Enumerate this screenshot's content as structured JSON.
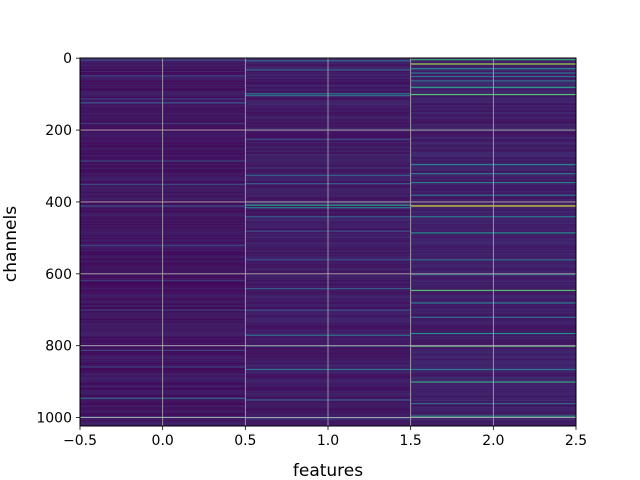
{
  "chart_data": {
    "type": "heatmap",
    "title": "",
    "xlabel": "features",
    "ylabel": "channels",
    "xlim": [
      -0.5,
      2.5
    ],
    "ylim": [
      1023.5,
      -0.5
    ],
    "y_inverted": true,
    "grid": true,
    "colormap": "viridis",
    "x_ticks": [
      "-0.5",
      "0.0",
      "0.5",
      "1.0",
      "1.5",
      "2.0",
      "2.5"
    ],
    "x_tick_labels": [
      "−0.5",
      "0.0",
      "0.5",
      "1.0",
      "1.5",
      "2.0",
      "2.5"
    ],
    "y_ticks": [
      "0",
      "200",
      "400",
      "600",
      "800",
      "1000"
    ],
    "n_rows": 1024,
    "n_cols": 3,
    "columns": [
      {
        "feature": 0,
        "base_level": 0.06,
        "highlights": [
          {
            "channel": 4,
            "level": 0.25
          },
          {
            "channel": 48,
            "level": 0.22
          },
          {
            "channel": 112,
            "level": 0.2
          },
          {
            "channel": 123,
            "level": 0.28
          },
          {
            "channel": 180,
            "level": 0.18
          },
          {
            "channel": 285,
            "level": 0.2
          },
          {
            "channel": 350,
            "level": 0.22
          },
          {
            "channel": 410,
            "level": 0.25
          },
          {
            "channel": 520,
            "level": 0.2
          },
          {
            "channel": 618,
            "level": 0.18
          },
          {
            "channel": 700,
            "level": 0.2
          },
          {
            "channel": 812,
            "level": 0.22
          },
          {
            "channel": 858,
            "level": 0.2
          },
          {
            "channel": 945,
            "level": 0.35
          },
          {
            "channel": 998,
            "level": 0.3
          }
        ]
      },
      {
        "feature": 1,
        "base_level": 0.08,
        "highlights": [
          {
            "channel": 6,
            "level": 0.35
          },
          {
            "channel": 32,
            "level": 0.28
          },
          {
            "channel": 98,
            "level": 0.42
          },
          {
            "channel": 103,
            "level": 0.35
          },
          {
            "channel": 225,
            "level": 0.22
          },
          {
            "channel": 325,
            "level": 0.3
          },
          {
            "channel": 348,
            "level": 0.3
          },
          {
            "channel": 408,
            "level": 0.55
          },
          {
            "channel": 415,
            "level": 0.45
          },
          {
            "channel": 440,
            "level": 0.28
          },
          {
            "channel": 480,
            "level": 0.25
          },
          {
            "channel": 560,
            "level": 0.25
          },
          {
            "channel": 640,
            "level": 0.28
          },
          {
            "channel": 700,
            "level": 0.25
          },
          {
            "channel": 770,
            "level": 0.35
          },
          {
            "channel": 800,
            "level": 0.3
          },
          {
            "channel": 865,
            "level": 0.4
          },
          {
            "channel": 950,
            "level": 0.28
          },
          {
            "channel": 1000,
            "level": 0.3
          }
        ]
      },
      {
        "feature": 2,
        "base_level": 0.09,
        "highlights": [
          {
            "channel": 3,
            "level": 0.6
          },
          {
            "channel": 15,
            "level": 0.85
          },
          {
            "channel": 28,
            "level": 0.45
          },
          {
            "channel": 40,
            "level": 0.35
          },
          {
            "channel": 50,
            "level": 0.4
          },
          {
            "channel": 62,
            "level": 0.35
          },
          {
            "channel": 80,
            "level": 0.55
          },
          {
            "channel": 100,
            "level": 0.72
          },
          {
            "channel": 295,
            "level": 0.45
          },
          {
            "channel": 320,
            "level": 0.4
          },
          {
            "channel": 345,
            "level": 0.42
          },
          {
            "channel": 380,
            "level": 0.38
          },
          {
            "channel": 410,
            "level": 0.95
          },
          {
            "channel": 440,
            "level": 0.4
          },
          {
            "channel": 485,
            "level": 0.5
          },
          {
            "channel": 560,
            "level": 0.35
          },
          {
            "channel": 600,
            "level": 0.42
          },
          {
            "channel": 645,
            "level": 0.7
          },
          {
            "channel": 680,
            "level": 0.4
          },
          {
            "channel": 720,
            "level": 0.35
          },
          {
            "channel": 765,
            "level": 0.5
          },
          {
            "channel": 800,
            "level": 0.75
          },
          {
            "channel": 865,
            "level": 0.4
          },
          {
            "channel": 900,
            "level": 0.6
          },
          {
            "channel": 960,
            "level": 0.35
          },
          {
            "channel": 995,
            "level": 0.55
          }
        ]
      }
    ]
  }
}
